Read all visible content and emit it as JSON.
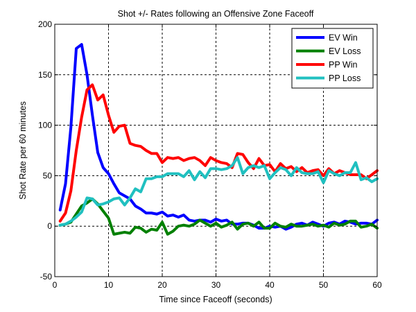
{
  "chart_data": {
    "type": "line",
    "title": "Shot +/- Rates following an Offensive Zone Faceoff",
    "xlabel": "Time since Faceoff (seconds)",
    "ylabel": "Shot Rate per 60 minutes",
    "xlim": [
      0,
      60
    ],
    "ylim": [
      -50,
      200
    ],
    "xticks": [
      "0",
      "10",
      "20",
      "30",
      "40",
      "50",
      "60"
    ],
    "yticks": [
      "-50",
      "0",
      "50",
      "100",
      "150",
      "200"
    ],
    "grid": true,
    "legend_position": "top-right",
    "x": [
      1,
      2,
      3,
      4,
      5,
      6,
      7,
      8,
      9,
      10,
      11,
      12,
      13,
      14,
      15,
      16,
      17,
      18,
      19,
      20,
      21,
      22,
      23,
      24,
      25,
      26,
      27,
      28,
      29,
      30,
      31,
      32,
      33,
      34,
      35,
      36,
      37,
      38,
      39,
      40,
      41,
      42,
      43,
      44,
      45,
      46,
      47,
      48,
      49,
      50,
      51,
      52,
      53,
      54,
      55,
      56,
      57,
      58,
      59,
      60
    ],
    "series": [
      {
        "name": "EV Win",
        "color": "#0000ff",
        "values": [
          16,
          42,
          98,
          176,
          180,
          150,
          110,
          73,
          58,
          52,
          42,
          33,
          30,
          27,
          20,
          17,
          13,
          13,
          12,
          14,
          10,
          11,
          9,
          11,
          6,
          5,
          6,
          6,
          4,
          7,
          5,
          6,
          2,
          2,
          3,
          3,
          1,
          -2,
          -2,
          0,
          -1,
          0,
          -3,
          -1,
          2,
          3,
          1,
          4,
          2,
          0,
          3,
          4,
          2,
          5,
          4,
          2,
          3,
          3,
          2,
          6
        ]
      },
      {
        "name": "EV Loss",
        "color": "#008000",
        "values": [
          1,
          2,
          4,
          12,
          20,
          23,
          27,
          22,
          15,
          8,
          -8,
          -7,
          -6,
          -7,
          -1,
          -2,
          -6,
          -3,
          -4,
          4,
          -8,
          -5,
          0,
          1,
          0,
          2,
          6,
          3,
          0,
          3,
          -1,
          1,
          4,
          -3,
          2,
          3,
          0,
          4,
          -2,
          -2,
          3,
          0,
          -1,
          2,
          0,
          0,
          1,
          2,
          0,
          1,
          -1,
          3,
          1,
          2,
          5,
          5,
          -1,
          0,
          2,
          -2
        ]
      },
      {
        "name": "PP Win",
        "color": "#ff0000",
        "values": [
          5,
          13,
          35,
          75,
          108,
          135,
          140,
          125,
          130,
          110,
          93,
          99,
          100,
          82,
          80,
          79,
          75,
          72,
          72,
          63,
          68,
          67,
          68,
          65,
          67,
          68,
          65,
          60,
          68,
          65,
          63,
          62,
          58,
          72,
          71,
          63,
          57,
          67,
          60,
          61,
          54,
          62,
          57,
          59,
          54,
          58,
          53,
          55,
          56,
          50,
          57,
          52,
          55,
          53,
          51,
          51,
          51,
          47,
          51,
          55
        ]
      },
      {
        "name": "PP Loss",
        "color": "#20c0c0",
        "values": [
          1,
          2,
          5,
          9,
          14,
          28,
          27,
          21,
          22,
          24,
          27,
          28,
          21,
          28,
          37,
          34,
          47,
          47,
          49,
          49,
          52,
          52,
          52,
          49,
          55,
          46,
          54,
          48,
          57,
          57,
          56,
          57,
          60,
          68,
          52,
          58,
          60,
          58,
          60,
          47,
          53,
          58,
          56,
          50,
          58,
          53,
          52,
          52,
          54,
          43,
          55,
          52,
          50,
          53,
          53,
          63,
          46,
          48,
          44,
          47
        ]
      }
    ]
  }
}
